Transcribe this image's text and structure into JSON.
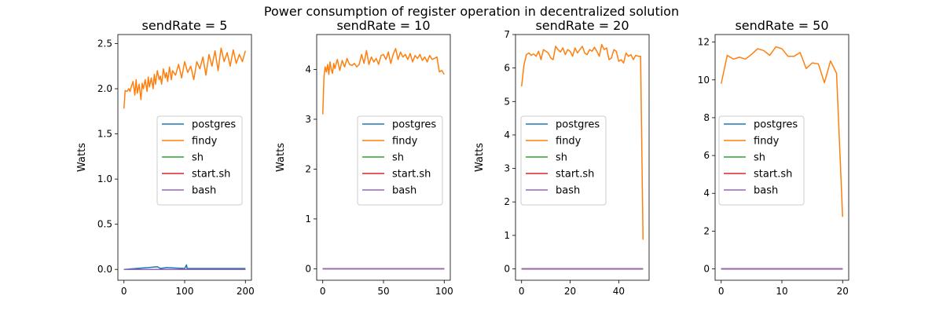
{
  "figure": {
    "title": "Power consumption of register operation in decentralized solution"
  },
  "colors": {
    "postgres": "#1f77b4",
    "findy": "#ff7f0e",
    "sh": "#2ca02c",
    "start.sh": "#d62728",
    "bash": "#9467bd"
  },
  "chart_data": [
    {
      "type": "line",
      "title": "sendRate = 5",
      "xlabel": "",
      "ylabel": "Watts",
      "xlim": [
        -10,
        210
      ],
      "ylim": [
        -0.12,
        2.6
      ],
      "x_ticks": [
        0,
        100,
        200
      ],
      "y_ticks": [
        0.0,
        0.5,
        1.0,
        1.5,
        2.0,
        2.5
      ],
      "y_tick_labels": [
        "0.0",
        "0.5",
        "1.0",
        "1.5",
        "2.0",
        "2.5"
      ],
      "legend": "center-right",
      "grid": false,
      "series": [
        {
          "name": "postgres",
          "x": [
            0,
            20,
            40,
            55,
            60,
            70,
            100,
            103,
            104,
            140,
            170,
            200
          ],
          "y": [
            0,
            0.01,
            0.02,
            0.03,
            0.01,
            0.02,
            0.01,
            0.05,
            0.01,
            0.01,
            0.01,
            0.01
          ]
        },
        {
          "name": "findy",
          "x": [
            0,
            2,
            5,
            8,
            10,
            12,
            15,
            18,
            20,
            22,
            25,
            28,
            30,
            32,
            35,
            38,
            40,
            42,
            45,
            48,
            50,
            52,
            55,
            58,
            60,
            62,
            65,
            68,
            70,
            72,
            75,
            78,
            80,
            85,
            90,
            95,
            100,
            105,
            110,
            115,
            120,
            125,
            130,
            135,
            140,
            145,
            150,
            155,
            160,
            165,
            170,
            175,
            180,
            185,
            190,
            195,
            200
          ],
          "y": [
            1.78,
            1.98,
            1.97,
            2.0,
            1.97,
            2.02,
            2.08,
            1.93,
            2.1,
            1.95,
            2.05,
            1.88,
            2.06,
            2.0,
            2.1,
            1.97,
            2.13,
            2.02,
            2.12,
            2.0,
            2.16,
            2.05,
            2.2,
            2.1,
            2.14,
            2.05,
            2.22,
            2.12,
            2.18,
            2.08,
            2.24,
            2.1,
            2.2,
            2.15,
            2.27,
            2.12,
            2.3,
            2.18,
            2.25,
            2.1,
            2.3,
            2.22,
            2.35,
            2.15,
            2.38,
            2.25,
            2.42,
            2.2,
            2.45,
            2.3,
            2.4,
            2.25,
            2.43,
            2.28,
            2.38,
            2.3,
            2.42
          ]
        },
        {
          "name": "sh",
          "x": [
            0,
            200
          ],
          "y": [
            0,
            0
          ]
        },
        {
          "name": "start.sh",
          "x": [
            0,
            200
          ],
          "y": [
            0,
            0
          ]
        },
        {
          "name": "bash",
          "x": [
            0,
            200
          ],
          "y": [
            0,
            0
          ]
        }
      ]
    },
    {
      "type": "line",
      "title": "sendRate = 10",
      "xlabel": "",
      "ylabel": "Watts",
      "xlim": [
        -5,
        105
      ],
      "ylim": [
        -0.23,
        4.7
      ],
      "x_ticks": [
        0,
        50,
        100
      ],
      "y_ticks": [
        0,
        1,
        2,
        3,
        4
      ],
      "y_tick_labels": [
        "0",
        "1",
        "2",
        "3",
        "4"
      ],
      "legend": "center-right",
      "grid": false,
      "series": [
        {
          "name": "postgres",
          "x": [
            0,
            100
          ],
          "y": [
            0,
            0
          ]
        },
        {
          "name": "findy",
          "x": [
            0,
            1,
            2,
            3,
            4,
            5,
            6,
            7,
            8,
            9,
            10,
            12,
            14,
            16,
            18,
            20,
            22,
            24,
            26,
            28,
            30,
            32,
            34,
            36,
            38,
            40,
            42,
            44,
            46,
            48,
            50,
            52,
            54,
            56,
            58,
            60,
            62,
            64,
            66,
            68,
            70,
            72,
            74,
            76,
            78,
            80,
            82,
            84,
            86,
            88,
            90,
            92,
            94,
            96,
            98,
            100
          ],
          "y": [
            3.1,
            3.85,
            4.05,
            3.95,
            4.1,
            3.9,
            4.15,
            4.0,
            3.92,
            4.12,
            4.02,
            4.2,
            3.98,
            4.18,
            4.05,
            4.22,
            4.1,
            4.08,
            4.12,
            4.05,
            4.1,
            4.3,
            4.12,
            4.38,
            4.1,
            4.25,
            4.15,
            4.22,
            4.1,
            4.28,
            4.3,
            4.2,
            4.35,
            4.12,
            4.3,
            4.42,
            4.2,
            4.35,
            4.25,
            4.3,
            4.2,
            4.32,
            4.15,
            4.28,
            4.22,
            4.3,
            4.18,
            4.25,
            4.15,
            4.28,
            4.2,
            4.22,
            4.25,
            3.95,
            3.98,
            3.9
          ]
        },
        {
          "name": "sh",
          "x": [
            0,
            100
          ],
          "y": [
            0,
            0
          ]
        },
        {
          "name": "start.sh",
          "x": [
            0,
            100
          ],
          "y": [
            0,
            0
          ]
        },
        {
          "name": "bash",
          "x": [
            0,
            100
          ],
          "y": [
            0,
            0
          ]
        }
      ]
    },
    {
      "type": "line",
      "title": "sendRate = 20",
      "xlabel": "",
      "ylabel": "Watts",
      "xlim": [
        -2.5,
        52.5
      ],
      "ylim": [
        -0.34,
        7.0
      ],
      "x_ticks": [
        0,
        20,
        40
      ],
      "y_ticks": [
        0,
        1,
        2,
        3,
        4,
        5,
        6,
        7
      ],
      "y_tick_labels": [
        "0",
        "1",
        "2",
        "3",
        "4",
        "5",
        "6",
        "7"
      ],
      "legend": "center-left",
      "grid": false,
      "series": [
        {
          "name": "postgres",
          "x": [
            0,
            50
          ],
          "y": [
            0,
            0
          ]
        },
        {
          "name": "findy",
          "x": [
            0,
            1,
            2,
            3,
            4,
            5,
            6,
            7,
            8,
            9,
            10,
            11,
            12,
            13,
            14,
            15,
            16,
            17,
            18,
            19,
            20,
            21,
            22,
            23,
            24,
            25,
            26,
            27,
            28,
            29,
            30,
            31,
            32,
            33,
            34,
            35,
            36,
            37,
            38,
            39,
            40,
            41,
            42,
            43,
            44,
            45,
            46,
            47,
            48,
            49,
            50
          ],
          "y": [
            5.45,
            6.1,
            6.4,
            6.45,
            6.38,
            6.42,
            6.35,
            6.5,
            6.25,
            6.55,
            6.5,
            6.45,
            6.3,
            6.25,
            6.65,
            6.55,
            6.48,
            6.6,
            6.4,
            6.55,
            6.5,
            6.35,
            6.6,
            6.45,
            6.55,
            6.65,
            6.45,
            6.4,
            6.55,
            6.5,
            6.62,
            6.5,
            6.35,
            6.7,
            6.55,
            6.6,
            6.25,
            6.3,
            6.55,
            6.5,
            6.2,
            6.25,
            6.15,
            6.45,
            6.35,
            6.4,
            6.25,
            6.38,
            6.35,
            6.35,
            0.87
          ]
        },
        {
          "name": "sh",
          "x": [
            0,
            50
          ],
          "y": [
            0,
            0
          ]
        },
        {
          "name": "start.sh",
          "x": [
            0,
            50
          ],
          "y": [
            0,
            0
          ]
        },
        {
          "name": "bash",
          "x": [
            0,
            50
          ],
          "y": [
            0,
            0
          ]
        }
      ]
    },
    {
      "type": "line",
      "title": "sendRate = 50",
      "xlabel": "",
      "ylabel": "",
      "xlim": [
        -1,
        21
      ],
      "ylim": [
        -0.6,
        12.4
      ],
      "x_ticks": [
        0,
        10,
        20
      ],
      "y_ticks": [
        0,
        2,
        4,
        6,
        8,
        10,
        12
      ],
      "y_tick_labels": [
        "0",
        "2",
        "4",
        "6",
        "8",
        "10",
        "12"
      ],
      "legend": "center-left",
      "grid": false,
      "series": [
        {
          "name": "postgres",
          "x": [
            0,
            20
          ],
          "y": [
            0,
            0
          ]
        },
        {
          "name": "findy",
          "x": [
            0,
            1,
            2,
            3,
            4,
            5,
            6,
            7,
            8,
            9,
            10,
            11,
            12,
            13,
            14,
            15,
            16,
            17,
            18,
            19,
            20
          ],
          "y": [
            9.8,
            11.3,
            11.1,
            11.2,
            11.1,
            11.35,
            11.65,
            11.55,
            11.3,
            11.75,
            11.65,
            11.25,
            11.25,
            11.45,
            10.6,
            10.9,
            10.85,
            9.85,
            11.0,
            10.35,
            2.75
          ]
        },
        {
          "name": "sh",
          "x": [
            0,
            20
          ],
          "y": [
            0,
            0
          ]
        },
        {
          "name": "start.sh",
          "x": [
            0,
            20
          ],
          "y": [
            0,
            0
          ]
        },
        {
          "name": "bash",
          "x": [
            0,
            20
          ],
          "y": [
            0,
            0
          ]
        }
      ]
    }
  ]
}
